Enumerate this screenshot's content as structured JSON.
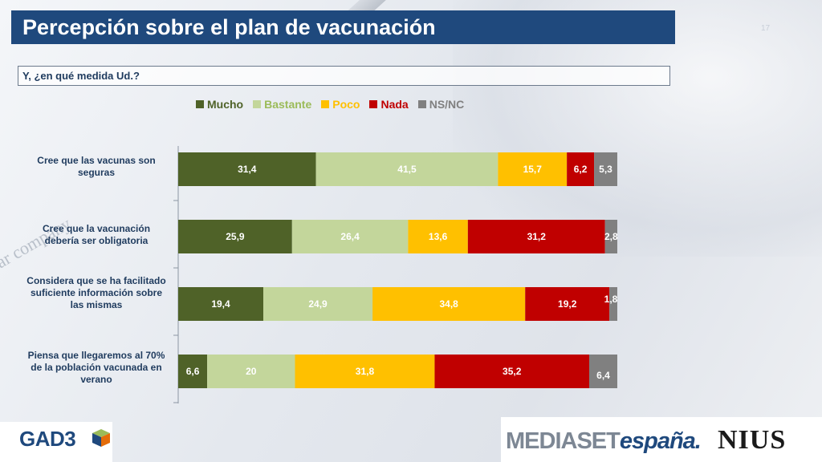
{
  "header": {
    "title": "Percepción sobre el plan de vacunación",
    "page_number": "17"
  },
  "question": "Y, ¿en qué medida Ud.?",
  "colors": {
    "Mucho": "#4f6228",
    "Bastante": "#c3d69b",
    "Poco": "#ffc000",
    "Nada": "#c00000",
    "NS/NC": "#808080"
  },
  "legend_text_colors": {
    "Mucho": "#4f6228",
    "Bastante": "#9bbb59",
    "Poco": "#ffc000",
    "Nada": "#c00000",
    "NS/NC": "#808080"
  },
  "chart_data": {
    "type": "bar",
    "orientation": "horizontal",
    "stacked": true,
    "categories": [
      "Cree que las vacunas son seguras",
      "Cree que la vacunación debería ser obligatoria",
      "Considera que se ha facilitado suficiente información sobre las mismas",
      "Piensa que llegaremos al 70% de la población vacunada en verano"
    ],
    "series": [
      {
        "name": "Mucho",
        "values": [
          31.4,
          25.9,
          19.4,
          6.6
        ],
        "labels": [
          "31,4",
          "25,9",
          "19,4",
          "6,6"
        ]
      },
      {
        "name": "Bastante",
        "values": [
          41.5,
          26.4,
          24.9,
          20
        ],
        "labels": [
          "41,5",
          "26,4",
          "24,9",
          "20"
        ]
      },
      {
        "name": "Poco",
        "values": [
          15.7,
          13.6,
          34.8,
          31.8
        ],
        "labels": [
          "15,7",
          "13,6",
          "34,8",
          "31,8"
        ]
      },
      {
        "name": "Nada",
        "values": [
          6.2,
          31.2,
          19.2,
          35.2
        ],
        "labels": [
          "6,2",
          "31,2",
          "19,2",
          "35,2"
        ]
      },
      {
        "name": "NS/NC",
        "values": [
          5.3,
          2.8,
          1.8,
          6.4
        ],
        "labels": [
          "5,3",
          "2,8",
          "1,8",
          "6,4"
        ]
      }
    ],
    "legend_position": "top",
    "grid": false
  },
  "logos": {
    "left": "GAD3",
    "right_1_a": "MEDIASET",
    "right_1_b": "españa.",
    "right_2": "NIUS"
  }
}
